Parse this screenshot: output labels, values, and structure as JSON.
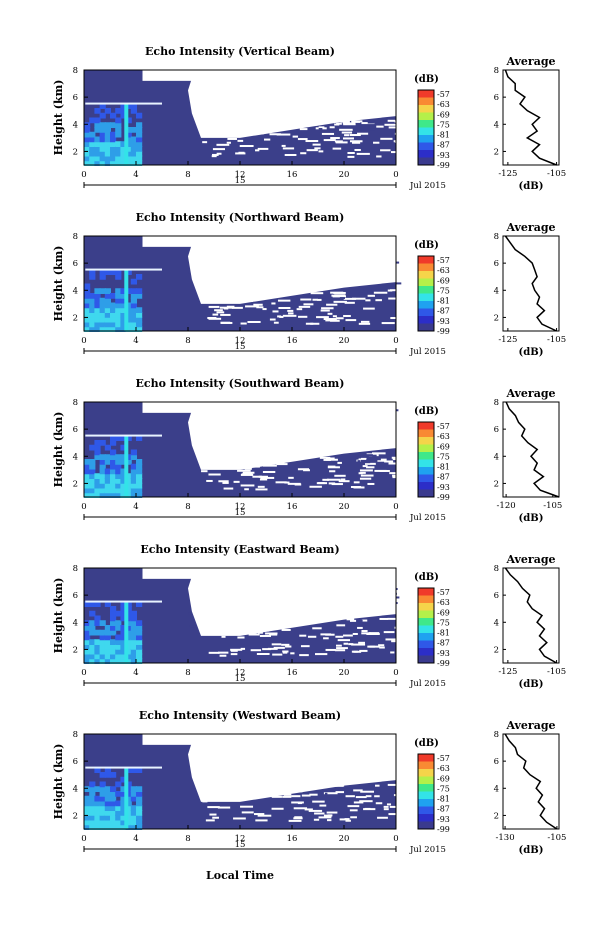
{
  "figure": {
    "date_label": "Jul 2015",
    "xlabel_bottom": "Local Time",
    "day_label": "15",
    "height_label": "Height (km)",
    "unit_label": "(dB)",
    "average_title": "Average"
  },
  "colors": {
    "scale": [
      "#f03a2a",
      "#f98a33",
      "#f5d44a",
      "#b4f04a",
      "#3fe88a",
      "#33e3e8",
      "#1fa2f0",
      "#2f58e8",
      "#2c2ec8",
      "#3a3a8e"
    ],
    "background": "#3b3f8a",
    "cell_light": "#2e9ee8",
    "cell_cyan": "#3fd8ee"
  },
  "chart_data": [
    {
      "type": "heatmap",
      "title": "Echo Intensity (Vertical Beam)",
      "ylabel": "Height (km)",
      "xticks": [
        "0",
        "4",
        "8",
        "12",
        "16",
        "20",
        "0"
      ],
      "yticks": [
        "2",
        "4",
        "6",
        "8"
      ],
      "colorbar_ticks": [
        "-57",
        "-63",
        "-69",
        "-75",
        "-81",
        "-87",
        "-93",
        "-99"
      ],
      "xlim": [
        0,
        24
      ],
      "ylim": [
        1,
        8
      ],
      "average": {
        "title": "Average",
        "xlabel": "(dB)",
        "xticks": [
          "-125",
          "-105"
        ],
        "yticks": [
          "2",
          "4",
          "6",
          "8"
        ],
        "xlim": [
          -127,
          -104
        ],
        "profile": [
          [
            -105,
            1
          ],
          [
            -112,
            1.5
          ],
          [
            -115,
            2
          ],
          [
            -112,
            2.5
          ],
          [
            -117,
            3
          ],
          [
            -113,
            3.5
          ],
          [
            -115,
            4
          ],
          [
            -112,
            4.5
          ],
          [
            -117,
            5
          ],
          [
            -120,
            5.5
          ],
          [
            -118,
            6
          ],
          [
            -122,
            6.5
          ],
          [
            -122,
            7
          ],
          [
            -125,
            7.5
          ],
          [
            -126,
            8
          ]
        ]
      }
    },
    {
      "type": "heatmap",
      "title": "Echo Intensity (Northward Beam)",
      "ylabel": "Height (km)",
      "xticks": [
        "0",
        "4",
        "8",
        "12",
        "16",
        "20",
        "0"
      ],
      "yticks": [
        "2",
        "4",
        "6",
        "8"
      ],
      "colorbar_ticks": [
        "-57",
        "-63",
        "-69",
        "-75",
        "-81",
        "-87",
        "-93",
        "-99"
      ],
      "xlim": [
        0,
        24
      ],
      "ylim": [
        1,
        8
      ],
      "average": {
        "title": "Average",
        "xlabel": "(dB)",
        "xticks": [
          "-125",
          "-105"
        ],
        "yticks": [
          "2",
          "4",
          "6",
          "8"
        ],
        "xlim": [
          -127,
          -104
        ],
        "profile": [
          [
            -105,
            1
          ],
          [
            -111,
            1.5
          ],
          [
            -113,
            2
          ],
          [
            -110,
            2.5
          ],
          [
            -113,
            3
          ],
          [
            -112,
            3.5
          ],
          [
            -114,
            4
          ],
          [
            -115,
            4.5
          ],
          [
            -113,
            5
          ],
          [
            -114,
            5.5
          ],
          [
            -115,
            6
          ],
          [
            -118,
            6.5
          ],
          [
            -122,
            7
          ],
          [
            -124,
            7.5
          ],
          [
            -126,
            8
          ]
        ]
      }
    },
    {
      "type": "heatmap",
      "title": "Echo Intensity (Southward Beam)",
      "ylabel": "Height (km)",
      "xticks": [
        "0",
        "4",
        "8",
        "12",
        "16",
        "20",
        "0"
      ],
      "yticks": [
        "2",
        "4",
        "6",
        "8"
      ],
      "colorbar_ticks": [
        "-57",
        "-63",
        "-69",
        "-75",
        "-81",
        "-87",
        "-93",
        "-99"
      ],
      "xlim": [
        0,
        24
      ],
      "ylim": [
        1,
        8
      ],
      "average": {
        "title": "Average",
        "xlabel": "(dB)",
        "xticks": [
          "-120",
          "-105"
        ],
        "yticks": [
          "2",
          "4",
          "6",
          "8"
        ],
        "xlim": [
          -121,
          -103
        ],
        "profile": [
          [
            -103,
            1
          ],
          [
            -109,
            1.5
          ],
          [
            -111,
            2
          ],
          [
            -108,
            2.5
          ],
          [
            -111,
            3
          ],
          [
            -110,
            3.5
          ],
          [
            -112,
            4
          ],
          [
            -110,
            4.5
          ],
          [
            -113,
            5
          ],
          [
            -115,
            5.5
          ],
          [
            -114,
            6
          ],
          [
            -116,
            6.5
          ],
          [
            -117,
            7
          ],
          [
            -119,
            7.5
          ],
          [
            -120,
            8
          ]
        ]
      }
    },
    {
      "type": "heatmap",
      "title": "Echo Intensity (Eastward Beam)",
      "ylabel": "Height (km)",
      "xticks": [
        "0",
        "4",
        "8",
        "12",
        "16",
        "20",
        "0"
      ],
      "yticks": [
        "2",
        "4",
        "6",
        "8"
      ],
      "colorbar_ticks": [
        "-57",
        "-63",
        "-69",
        "-75",
        "-81",
        "-87",
        "-93",
        "-99"
      ],
      "xlim": [
        0,
        24
      ],
      "ylim": [
        1,
        8
      ],
      "average": {
        "title": "Average",
        "xlabel": "(dB)",
        "xticks": [
          "-125",
          "-105"
        ],
        "yticks": [
          "2",
          "4",
          "6",
          "8"
        ],
        "xlim": [
          -127,
          -104
        ],
        "profile": [
          [
            -105,
            1
          ],
          [
            -110,
            1.5
          ],
          [
            -112,
            2
          ],
          [
            -109,
            2.5
          ],
          [
            -112,
            3
          ],
          [
            -110,
            3.5
          ],
          [
            -113,
            4
          ],
          [
            -111,
            4.5
          ],
          [
            -115,
            5
          ],
          [
            -117,
            5.5
          ],
          [
            -116,
            6
          ],
          [
            -119,
            6.5
          ],
          [
            -121,
            7
          ],
          [
            -124,
            7.5
          ],
          [
            -126,
            8
          ]
        ]
      }
    },
    {
      "type": "heatmap",
      "title": "Echo Intensity (Westward Beam)",
      "ylabel": "Height (km)",
      "xticks": [
        "0",
        "4",
        "8",
        "12",
        "16",
        "20",
        "0"
      ],
      "yticks": [
        "2",
        "4",
        "6",
        "8"
      ],
      "colorbar_ticks": [
        "-57",
        "-63",
        "-69",
        "-75",
        "-81",
        "-87",
        "-93",
        "-99"
      ],
      "xlim": [
        0,
        24
      ],
      "ylim": [
        1,
        8
      ],
      "average": {
        "title": "Average",
        "xlabel": "(dB)",
        "xticks": [
          "-130",
          "-105"
        ],
        "yticks": [
          "2",
          "4",
          "6",
          "8"
        ],
        "xlim": [
          -131,
          -104
        ],
        "profile": [
          [
            -105,
            1
          ],
          [
            -110,
            1.5
          ],
          [
            -113,
            2
          ],
          [
            -111,
            2.5
          ],
          [
            -114,
            3
          ],
          [
            -112,
            3.5
          ],
          [
            -115,
            4
          ],
          [
            -113,
            4.5
          ],
          [
            -118,
            5
          ],
          [
            -121,
            5.5
          ],
          [
            -120,
            6
          ],
          [
            -124,
            6.5
          ],
          [
            -125,
            7
          ],
          [
            -128,
            7.5
          ],
          [
            -130,
            8
          ]
        ]
      }
    }
  ]
}
